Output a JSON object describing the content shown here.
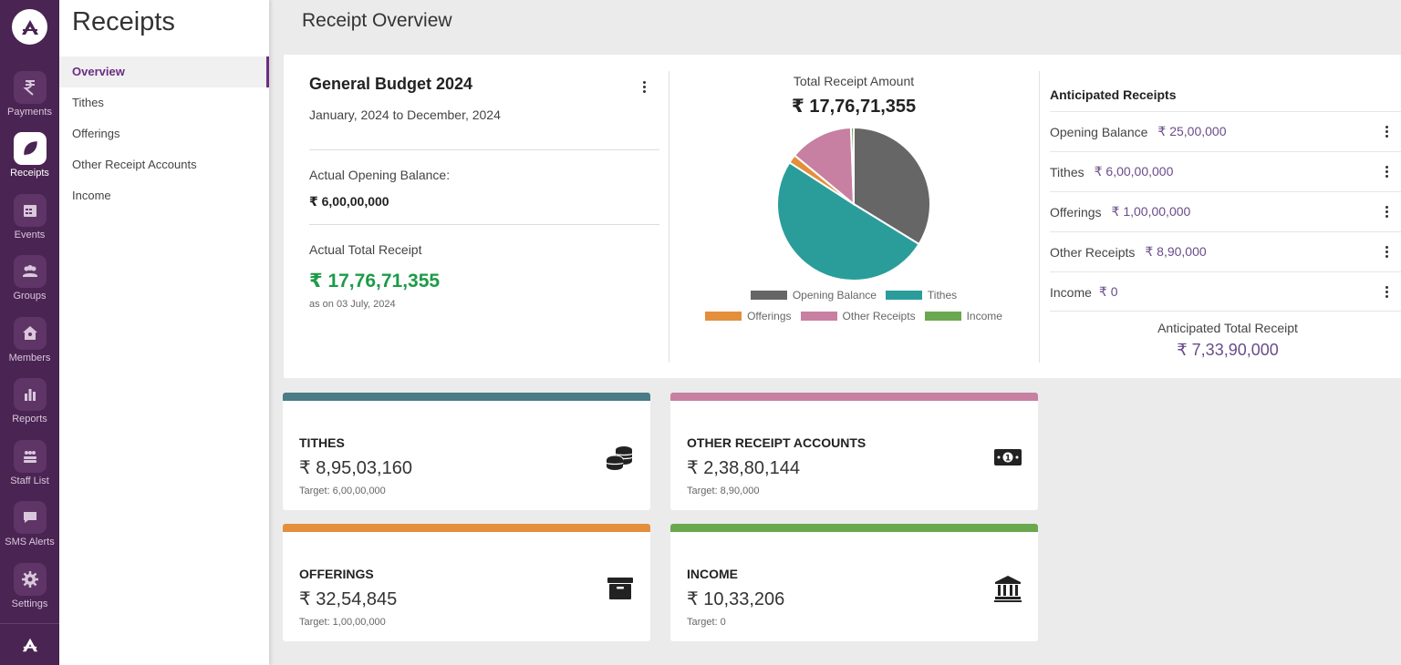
{
  "rail": {
    "items": [
      {
        "label": "Payments",
        "icon": "rupee-icon"
      },
      {
        "label": "Receipts",
        "icon": "leaf-icon",
        "active": true
      },
      {
        "label": "Events",
        "icon": "calendar-icon"
      },
      {
        "label": "Groups",
        "icon": "group-icon"
      },
      {
        "label": "Members",
        "icon": "home-icon"
      },
      {
        "label": "Reports",
        "icon": "bar-chart-icon"
      },
      {
        "label": "Staff List",
        "icon": "staff-icon"
      },
      {
        "label": "SMS Alerts",
        "icon": "chat-icon"
      },
      {
        "label": "Settings",
        "icon": "gear-icon"
      }
    ]
  },
  "subnav": {
    "title": "Receipts",
    "items": [
      {
        "label": "Overview",
        "active": true
      },
      {
        "label": "Tithes"
      },
      {
        "label": "Offerings"
      },
      {
        "label": "Other Receipt Accounts"
      },
      {
        "label": "Income"
      }
    ]
  },
  "main": {
    "title": "Receipt Overview"
  },
  "budget": {
    "title": "General Budget 2024",
    "range": "January, 2024 to December, 2024",
    "opening_label": "Actual Opening Balance:",
    "opening_value": "₹ 6,00,00,000",
    "total_label": "Actual Total Receipt",
    "total_value": "₹ 17,76,71,355",
    "as_on": "as on 03 July, 2024"
  },
  "total_receipt": {
    "title": "Total Receipt Amount",
    "amount": "₹ 17,76,71,355"
  },
  "chart_data": {
    "type": "pie",
    "slices": [
      {
        "label": "Opening Balance",
        "value": 60000000,
        "color": "#666666"
      },
      {
        "label": "Tithes",
        "value": 89503160,
        "color": "#2a9d9b"
      },
      {
        "label": "Offerings",
        "value": 3254845,
        "color": "#e38f3c"
      },
      {
        "label": "Other Receipts",
        "value": 23880144,
        "color": "#c77fa2"
      },
      {
        "label": "Income",
        "value": 1033206,
        "color": "#6aa84f"
      }
    ]
  },
  "anticipated": {
    "title": "Anticipated Receipts",
    "rows": [
      {
        "label": "Opening Balance",
        "amount": "₹ 25,00,000"
      },
      {
        "label": "Tithes",
        "amount": "₹ 6,00,00,000"
      },
      {
        "label": "Offerings",
        "amount": "₹ 1,00,00,000"
      },
      {
        "label": "Other Receipts",
        "amount": "₹ 8,90,000"
      },
      {
        "label": "Income",
        "amount": "₹ 0"
      }
    ],
    "total_label": "Anticipated Total Receipt",
    "total": "₹ 7,33,90,000"
  },
  "cards": [
    {
      "title": "TITHES",
      "value": "₹ 8,95,03,160",
      "target": "Target: 6,00,00,000",
      "color": "#4a7b87",
      "icon": "coins-icon"
    },
    {
      "title": "OTHER RECEIPT ACCOUNTS",
      "value": "₹ 2,38,80,144",
      "target": "Target: 8,90,000",
      "color": "#c77fa2",
      "icon": "money-bill-icon"
    },
    {
      "title": "OFFERINGS",
      "value": "₹ 32,54,845",
      "target": "Target: 1,00,00,000",
      "color": "#e38f3c",
      "icon": "archive-box-icon"
    },
    {
      "title": "INCOME",
      "value": "₹ 10,33,206",
      "target": "Target: 0",
      "color": "#6aa84f",
      "icon": "bank-icon"
    }
  ]
}
